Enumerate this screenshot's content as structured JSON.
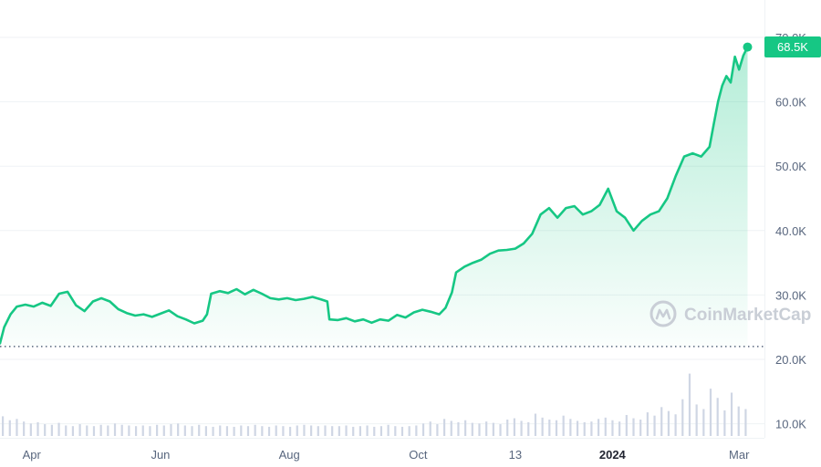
{
  "chart_data": {
    "type": "area",
    "watermark": "CoinMarketCap",
    "current_price_label": "68.5K",
    "y_ticks": [
      {
        "value": 70000,
        "label": "70.0K"
      },
      {
        "value": 60000,
        "label": "60.0K"
      },
      {
        "value": 50000,
        "label": "50.0K"
      },
      {
        "value": 40000,
        "label": "40.0K"
      },
      {
        "value": 30000,
        "label": "30.0K"
      },
      {
        "value": 20000,
        "label": "20.0K"
      },
      {
        "value": 10000,
        "label": "10.0K"
      }
    ],
    "ylim": [
      20000,
      70000
    ],
    "x_ticks": [
      {
        "day": 15,
        "label": "Apr",
        "bold": false
      },
      {
        "day": 76,
        "label": "Jun",
        "bold": false
      },
      {
        "day": 137,
        "label": "Aug",
        "bold": false
      },
      {
        "day": 198,
        "label": "Oct",
        "bold": false
      },
      {
        "day": 244,
        "label": "13",
        "bold": false
      },
      {
        "day": 290,
        "label": "2024",
        "bold": true
      },
      {
        "day": 350,
        "label": "Mar",
        "bold": false
      }
    ],
    "dotted_reference_value": 22000,
    "colors": {
      "line": "#16c784",
      "fill": "#16c784",
      "volume": "#cfd6e4",
      "grid": "#eff2f5"
    },
    "series": [
      {
        "points": [
          [
            0,
            22500
          ],
          [
            2,
            25000
          ],
          [
            5,
            27000
          ],
          [
            8,
            28200
          ],
          [
            12,
            28500
          ],
          [
            16,
            28200
          ],
          [
            20,
            28800
          ],
          [
            24,
            28300
          ],
          [
            28,
            30200
          ],
          [
            32,
            30500
          ],
          [
            36,
            28400
          ],
          [
            40,
            27500
          ],
          [
            44,
            29000
          ],
          [
            48,
            29500
          ],
          [
            52,
            29000
          ],
          [
            56,
            27800
          ],
          [
            60,
            27200
          ],
          [
            64,
            26800
          ],
          [
            68,
            27000
          ],
          [
            72,
            26600
          ],
          [
            76,
            27100
          ],
          [
            80,
            27600
          ],
          [
            84,
            26700
          ],
          [
            88,
            26200
          ],
          [
            92,
            25600
          ],
          [
            96,
            26000
          ],
          [
            98,
            27000
          ],
          [
            100,
            30200
          ],
          [
            104,
            30600
          ],
          [
            108,
            30300
          ],
          [
            112,
            30900
          ],
          [
            116,
            30100
          ],
          [
            120,
            30800
          ],
          [
            124,
            30200
          ],
          [
            128,
            29500
          ],
          [
            132,
            29300
          ],
          [
            136,
            29500
          ],
          [
            140,
            29200
          ],
          [
            144,
            29400
          ],
          [
            148,
            29700
          ],
          [
            152,
            29300
          ],
          [
            155,
            29000
          ],
          [
            156,
            26200
          ],
          [
            160,
            26100
          ],
          [
            164,
            26400
          ],
          [
            168,
            25900
          ],
          [
            172,
            26200
          ],
          [
            176,
            25700
          ],
          [
            180,
            26200
          ],
          [
            184,
            26000
          ],
          [
            188,
            26900
          ],
          [
            192,
            26500
          ],
          [
            196,
            27300
          ],
          [
            200,
            27700
          ],
          [
            204,
            27400
          ],
          [
            208,
            27000
          ],
          [
            211,
            28000
          ],
          [
            214,
            30400
          ],
          [
            216,
            33500
          ],
          [
            220,
            34400
          ],
          [
            224,
            35000
          ],
          [
            228,
            35500
          ],
          [
            232,
            36400
          ],
          [
            236,
            36900
          ],
          [
            240,
            37000
          ],
          [
            244,
            37200
          ],
          [
            248,
            38000
          ],
          [
            252,
            39500
          ],
          [
            256,
            42500
          ],
          [
            260,
            43500
          ],
          [
            264,
            42000
          ],
          [
            268,
            43500
          ],
          [
            272,
            43800
          ],
          [
            276,
            42500
          ],
          [
            280,
            43000
          ],
          [
            284,
            44000
          ],
          [
            288,
            46500
          ],
          [
            292,
            43000
          ],
          [
            296,
            42000
          ],
          [
            300,
            40000
          ],
          [
            304,
            41500
          ],
          [
            308,
            42500
          ],
          [
            312,
            43000
          ],
          [
            316,
            45000
          ],
          [
            320,
            48500
          ],
          [
            324,
            51500
          ],
          [
            328,
            52000
          ],
          [
            332,
            51500
          ],
          [
            336,
            53000
          ],
          [
            338,
            56500
          ],
          [
            340,
            60000
          ],
          [
            342,
            62500
          ],
          [
            344,
            64000
          ],
          [
            346,
            63000
          ],
          [
            348,
            67000
          ],
          [
            350,
            65000
          ],
          [
            352,
            67200
          ],
          [
            354,
            68500
          ]
        ]
      }
    ],
    "volume": [
      3,
      2.4,
      2.6,
      2.2,
      1.9,
      2.1,
      1.8,
      1.7,
      2,
      1.6,
      1.5,
      1.8,
      1.6,
      1.5,
      1.7,
      1.6,
      1.9,
      1.7,
      1.6,
      1.5,
      1.6,
      1.5,
      1.7,
      1.6,
      1.8,
      1.9,
      1.6,
      1.5,
      1.7,
      1.5,
      1.4,
      1.6,
      1.5,
      1.4,
      1.6,
      1.5,
      1.7,
      1.5,
      1.4,
      1.6,
      1.5,
      1.4,
      1.6,
      1.7,
      1.6,
      1.5,
      1.6,
      1.5,
      1.5,
      1.6,
      1.4,
      1.5,
      1.6,
      1.4,
      1.5,
      1.7,
      1.5,
      1.4,
      1.5,
      1.6,
      1.9,
      2.2,
      1.8,
      2.6,
      2.3,
      2.1,
      2.4,
      2,
      1.9,
      2.2,
      2,
      1.8,
      2.5,
      2.7,
      2.3,
      2.1,
      3.4,
      2.8,
      2.5,
      2.4,
      3.1,
      2.6,
      2.3,
      2.1,
      2.2,
      2.6,
      2.8,
      2.4,
      2.2,
      3.2,
      2.7,
      2.5,
      3.6,
      3.1,
      4.4,
      3.8,
      3.3,
      5.6,
      9.5,
      4.8,
      4.1,
      7.2,
      5.8,
      3.9,
      6.6,
      4.5,
      4.1
    ]
  }
}
